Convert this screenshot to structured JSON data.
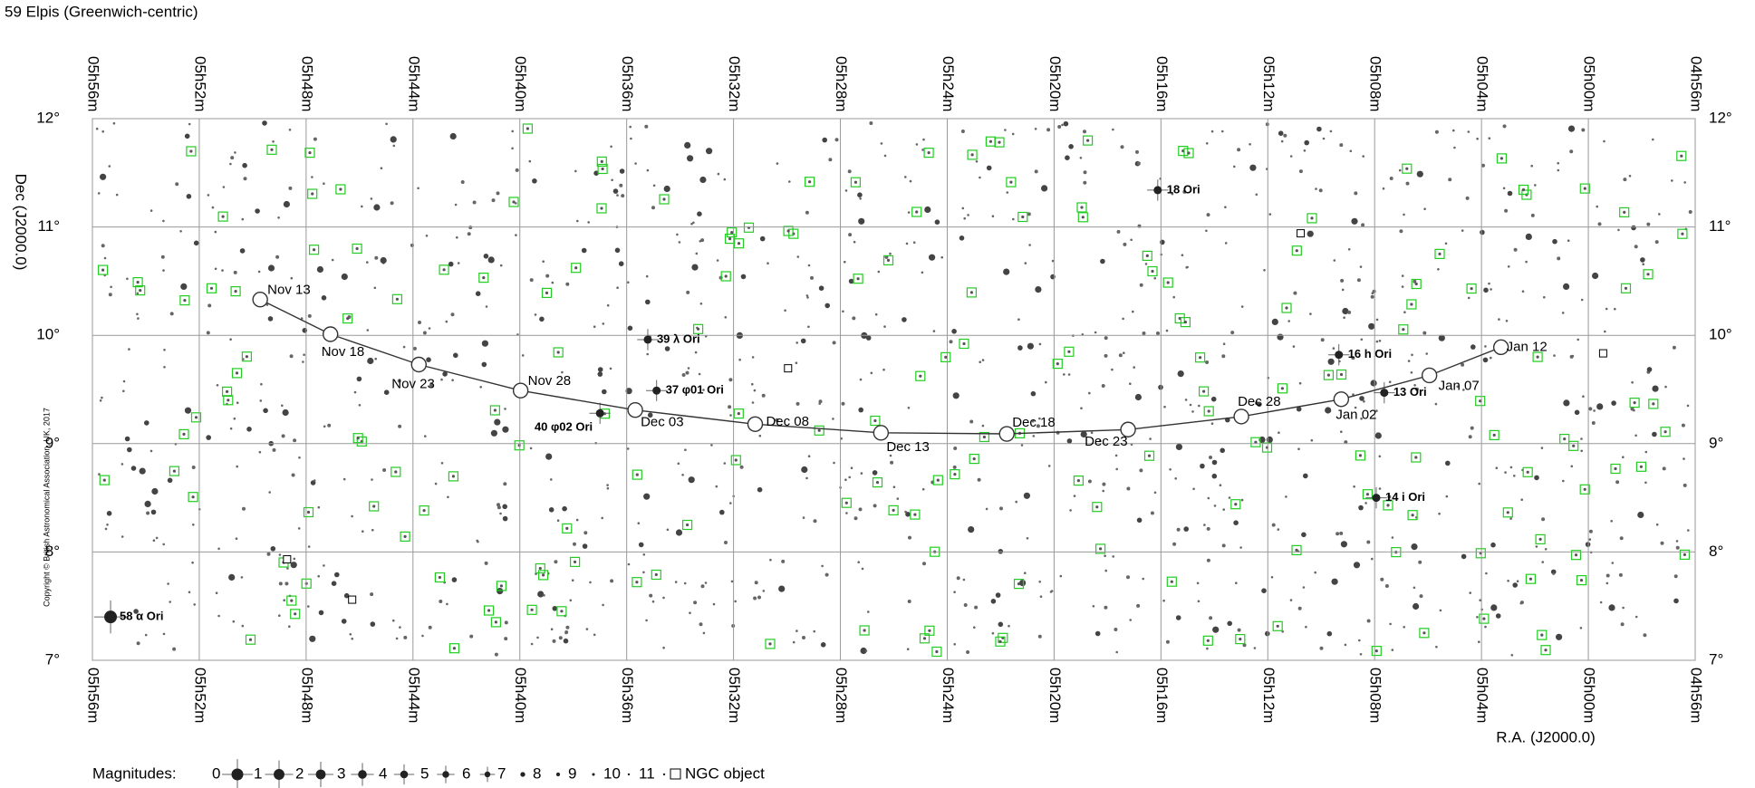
{
  "chart_data": {
    "type": "line",
    "title": "59 Elpis (Greenwich-centric)",
    "xlabel": "R.A. (J2000.0)",
    "ylabel": "Dec (J2000.0)",
    "copyright": "Copyright © British Astronomical Association, UK, 2017",
    "xlim": [
      356,
      296
    ],
    "ylim": [
      7,
      12
    ],
    "xticks": [
      {
        "value": 356,
        "label": "05h56m"
      },
      {
        "value": 352,
        "label": "05h52m"
      },
      {
        "value": 348,
        "label": "05h48m"
      },
      {
        "value": 344,
        "label": "05h44m"
      },
      {
        "value": 340,
        "label": "05h40m"
      },
      {
        "value": 336,
        "label": "05h36m"
      },
      {
        "value": 332,
        "label": "05h32m"
      },
      {
        "value": 328,
        "label": "05h28m"
      },
      {
        "value": 324,
        "label": "05h24m"
      },
      {
        "value": 320,
        "label": "05h20m"
      },
      {
        "value": 316,
        "label": "05h16m"
      },
      {
        "value": 312,
        "label": "05h12m"
      },
      {
        "value": 308,
        "label": "05h08m"
      },
      {
        "value": 304,
        "label": "05h04m"
      },
      {
        "value": 300,
        "label": "05h00m"
      },
      {
        "value": 296,
        "label": "04h56m"
      }
    ],
    "yticks": [
      {
        "value": 7,
        "label": "7°"
      },
      {
        "value": 8,
        "label": "8°"
      },
      {
        "value": 9,
        "label": "9°"
      },
      {
        "value": 10,
        "label": "10°"
      },
      {
        "value": 11,
        "label": "11°"
      },
      {
        "value": 12,
        "label": "12°"
      }
    ],
    "grid": true,
    "series": [
      {
        "color": "#333333",
        "x": [
          349.72,
          347.09,
          343.78,
          339.97,
          335.68,
          331.19,
          326.48,
          321.77,
          317.23,
          312.99,
          309.25,
          305.95,
          303.27
        ],
        "values": [
          10.33,
          10.01,
          9.73,
          9.49,
          9.31,
          9.18,
          9.1,
          9.09,
          9.13,
          9.25,
          9.41,
          9.63,
          9.89
        ],
        "labels": [
          "Nov 13",
          "Nov 18",
          "Nov 23",
          "Nov 28",
          "Dec 03",
          "Dec 08",
          "Dec 13",
          "Dec 18",
          "Dec 23",
          "Dec 28",
          "Jan 02",
          "Jan 07",
          "Jan 12"
        ]
      }
    ],
    "stars": [
      {
        "name": "58 α Ori",
        "ra": 355.32,
        "dec": 7.4
      },
      {
        "name": "39 λ Ori",
        "ra": 335.21,
        "dec": 9.96
      },
      {
        "name": "37 φ01 Ori",
        "ra": 334.88,
        "dec": 9.49
      },
      {
        "name": "40 φ02 Ori",
        "ra": 337.0,
        "dec": 9.28
      },
      {
        "name": "18 Ori",
        "ra": 316.12,
        "dec": 11.34
      },
      {
        "name": "16 h Ori",
        "ra": 309.34,
        "dec": 9.82
      },
      {
        "name": "13 Ori",
        "ra": 307.64,
        "dec": 9.47
      },
      {
        "name": "14 i Ori",
        "ra": 307.94,
        "dec": 8.5
      }
    ],
    "legend": {
      "title": "Magnitudes:",
      "magnitudes": [
        0,
        1,
        2,
        3,
        4,
        5,
        6,
        7,
        8,
        9,
        10,
        11
      ],
      "ngc": "NGC object"
    }
  }
}
